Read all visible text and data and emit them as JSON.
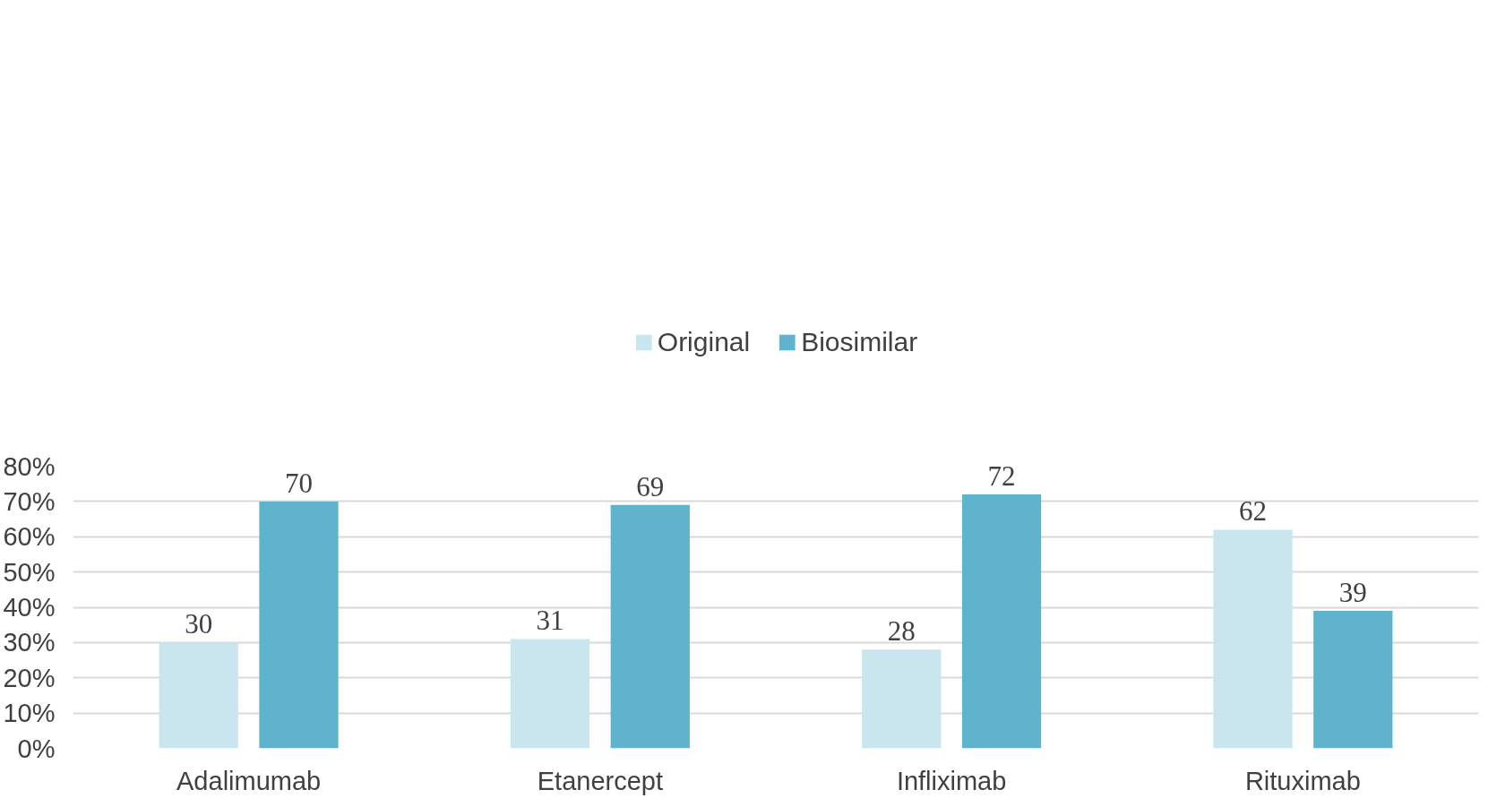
{
  "chart_data": {
    "type": "bar",
    "categories": [
      "Adalimumab",
      "Etanercept",
      "Infliximab",
      "Rituximab"
    ],
    "series": [
      {
        "name": "Original",
        "color": "#c9e6ee",
        "values": [
          30,
          31,
          28,
          62
        ]
      },
      {
        "name": "Biosimilar",
        "color": "#60b3cc",
        "values": [
          70,
          69,
          72,
          39
        ]
      }
    ],
    "ylim": [
      0,
      80
    ],
    "yticks": [
      {
        "value": 0,
        "label": "0%"
      },
      {
        "value": 10,
        "label": "10%"
      },
      {
        "value": 20,
        "label": "20%"
      },
      {
        "value": 30,
        "label": "30%"
      },
      {
        "value": 40,
        "label": "40%"
      },
      {
        "value": 50,
        "label": "50%"
      },
      {
        "value": 60,
        "label": "60%"
      },
      {
        "value": 70,
        "label": "70%"
      },
      {
        "value": 80,
        "label": "80%"
      }
    ],
    "data_labels": true,
    "grid": "y",
    "legend": "top"
  }
}
